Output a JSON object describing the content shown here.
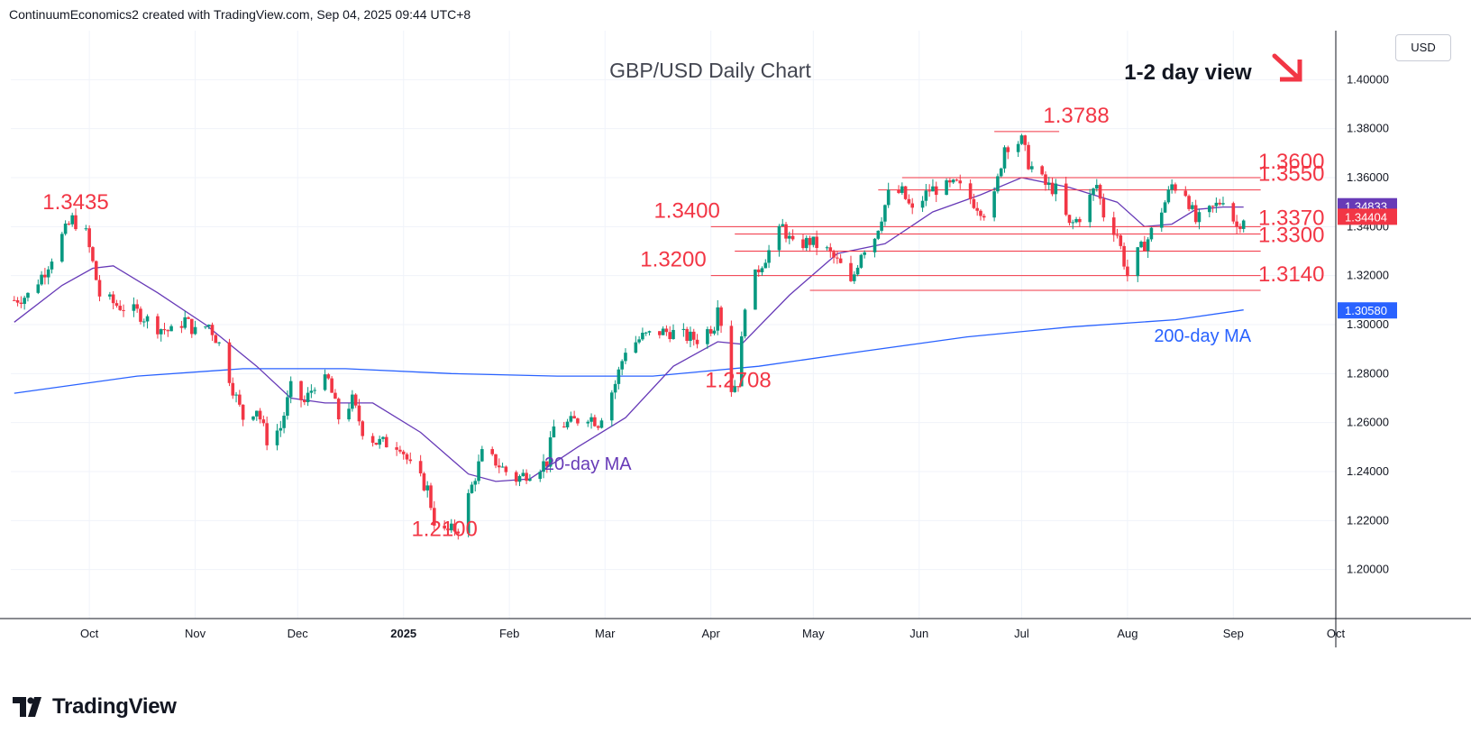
{
  "attribution": "ContinuumEconomics2 created with TradingView.com, Sep 04, 2025 09:44 UTC+8",
  "brand": {
    "name": "TradingView",
    "icon": "tradingview-logo-icon"
  },
  "currency_label": "USD",
  "colors": {
    "up": "#089981",
    "down": "#f23645",
    "ma20": "#673ab7",
    "ma200": "#2962ff",
    "level": "#f23645",
    "grid": "#f0f3fa",
    "arrow": "#f23645"
  },
  "chart_data": {
    "type": "candlestick",
    "title": "GBP/USD Daily Chart",
    "subtitle": "1-2 day view",
    "ylim": [
      1.18,
      1.42
    ],
    "xlim": [
      "2024-09-08",
      "2025-10-01"
    ],
    "y_ticks": [
      "1.20000",
      "1.22000",
      "1.24000",
      "1.26000",
      "1.28000",
      "1.30000",
      "1.32000",
      "1.34000",
      "1.36000",
      "1.38000",
      "1.40000"
    ],
    "x_ticks": [
      {
        "date": "2024-10-01",
        "label": "Oct",
        "bold": false
      },
      {
        "date": "2024-11-01",
        "label": "Nov",
        "bold": false
      },
      {
        "date": "2024-12-01",
        "label": "Dec",
        "bold": false
      },
      {
        "date": "2025-01-01",
        "label": "2025",
        "bold": true
      },
      {
        "date": "2025-02-01",
        "label": "Feb",
        "bold": false
      },
      {
        "date": "2025-03-01",
        "label": "Mar",
        "bold": false
      },
      {
        "date": "2025-04-01",
        "label": "Apr",
        "bold": false
      },
      {
        "date": "2025-05-01",
        "label": "May",
        "bold": false
      },
      {
        "date": "2025-06-01",
        "label": "Jun",
        "bold": false
      },
      {
        "date": "2025-07-01",
        "label": "Jul",
        "bold": false
      },
      {
        "date": "2025-08-01",
        "label": "Aug",
        "bold": false
      },
      {
        "date": "2025-09-01",
        "label": "Sep",
        "bold": false
      },
      {
        "date": "2025-10-01",
        "label": "Oct",
        "bold": false
      }
    ],
    "price_path": [
      [
        "2024-09-09",
        1.31
      ],
      [
        "2024-09-13",
        1.312
      ],
      [
        "2024-09-18",
        1.322
      ],
      [
        "2024-09-23",
        1.336
      ],
      [
        "2024-09-26",
        1.343
      ],
      [
        "2024-09-30",
        1.337
      ],
      [
        "2024-10-02",
        1.325
      ],
      [
        "2024-10-04",
        1.312
      ],
      [
        "2024-10-09",
        1.308
      ],
      [
        "2024-10-15",
        1.305
      ],
      [
        "2024-10-21",
        1.299
      ],
      [
        "2024-10-25",
        1.297
      ],
      [
        "2024-10-29",
        1.302
      ],
      [
        "2024-11-01",
        1.297
      ],
      [
        "2024-11-05",
        1.3
      ],
      [
        "2024-11-08",
        1.292
      ],
      [
        "2024-11-12",
        1.274
      ],
      [
        "2024-11-15",
        1.262
      ],
      [
        "2024-11-19",
        1.266
      ],
      [
        "2024-11-22",
        1.253
      ],
      [
        "2024-11-26",
        1.258
      ],
      [
        "2024-11-29",
        1.274
      ],
      [
        "2024-12-03",
        1.268
      ],
      [
        "2024-12-06",
        1.276
      ],
      [
        "2024-12-10",
        1.277
      ],
      [
        "2024-12-13",
        1.262
      ],
      [
        "2024-12-17",
        1.269
      ],
      [
        "2024-12-20",
        1.257
      ],
      [
        "2024-12-24",
        1.252
      ],
      [
        "2024-12-31",
        1.251
      ],
      [
        "2025-01-03",
        1.242
      ],
      [
        "2025-01-08",
        1.233
      ],
      [
        "2025-01-10",
        1.22
      ],
      [
        "2025-01-13",
        1.215
      ],
      [
        "2025-01-17",
        1.217
      ],
      [
        "2025-01-21",
        1.234
      ],
      [
        "2025-01-24",
        1.247
      ],
      [
        "2025-01-28",
        1.244
      ],
      [
        "2025-01-31",
        1.24
      ],
      [
        "2025-02-03",
        1.237
      ],
      [
        "2025-02-07",
        1.24
      ],
      [
        "2025-02-12",
        1.244
      ],
      [
        "2025-02-14",
        1.258
      ],
      [
        "2025-02-19",
        1.26
      ],
      [
        "2025-02-24",
        1.263
      ],
      [
        "2025-02-27",
        1.26
      ],
      [
        "2025-03-04",
        1.276
      ],
      [
        "2025-03-07",
        1.29
      ],
      [
        "2025-03-12",
        1.295
      ],
      [
        "2025-03-17",
        1.297
      ],
      [
        "2025-03-20",
        1.297
      ],
      [
        "2025-03-25",
        1.295
      ],
      [
        "2025-03-28",
        1.294
      ],
      [
        "2025-04-02",
        1.3
      ],
      [
        "2025-04-03",
        1.31
      ],
      [
        "2025-04-07",
        1.274
      ],
      [
        "2025-04-09",
        1.277
      ],
      [
        "2025-04-11",
        1.309
      ],
      [
        "2025-04-15",
        1.323
      ],
      [
        "2025-04-18",
        1.33
      ],
      [
        "2025-04-22",
        1.34
      ],
      [
        "2025-04-25",
        1.332
      ],
      [
        "2025-04-30",
        1.334
      ],
      [
        "2025-05-05",
        1.33
      ],
      [
        "2025-05-09",
        1.324
      ],
      [
        "2025-05-12",
        1.316
      ],
      [
        "2025-05-15",
        1.33
      ],
      [
        "2025-05-19",
        1.336
      ],
      [
        "2025-05-23",
        1.353
      ],
      [
        "2025-05-27",
        1.354
      ],
      [
        "2025-05-30",
        1.346
      ],
      [
        "2025-06-04",
        1.355
      ],
      [
        "2025-06-09",
        1.356
      ],
      [
        "2025-06-12",
        1.357
      ],
      [
        "2025-06-17",
        1.35
      ],
      [
        "2025-06-20",
        1.346
      ],
      [
        "2025-06-23",
        1.352
      ],
      [
        "2025-06-26",
        1.373
      ],
      [
        "2025-07-01",
        1.375
      ],
      [
        "2025-07-03",
        1.366
      ],
      [
        "2025-07-08",
        1.357
      ],
      [
        "2025-07-11",
        1.355
      ],
      [
        "2025-07-15",
        1.34
      ],
      [
        "2025-07-18",
        1.344
      ],
      [
        "2025-07-23",
        1.357
      ],
      [
        "2025-07-25",
        1.345
      ],
      [
        "2025-07-29",
        1.337
      ],
      [
        "2025-08-01",
        1.32
      ],
      [
        "2025-08-04",
        1.329
      ],
      [
        "2025-08-07",
        1.335
      ],
      [
        "2025-08-12",
        1.35
      ],
      [
        "2025-08-14",
        1.357
      ],
      [
        "2025-08-18",
        1.354
      ],
      [
        "2025-08-21",
        1.342
      ],
      [
        "2025-08-25",
        1.346
      ],
      [
        "2025-08-28",
        1.35
      ],
      [
        "2025-08-29",
        1.352
      ],
      [
        "2025-09-02",
        1.34
      ],
      [
        "2025-09-04",
        1.344
      ]
    ],
    "ma20_path": [
      [
        "2024-09-09",
        1.301
      ],
      [
        "2024-09-23",
        1.316
      ],
      [
        "2024-10-02",
        1.323
      ],
      [
        "2024-10-08",
        1.324
      ],
      [
        "2024-10-21",
        1.313
      ],
      [
        "2024-11-04",
        1.3
      ],
      [
        "2024-11-19",
        1.283
      ],
      [
        "2024-11-29",
        1.27
      ],
      [
        "2024-12-09",
        1.268
      ],
      [
        "2024-12-23",
        1.268
      ],
      [
        "2025-01-06",
        1.256
      ],
      [
        "2025-01-20",
        1.239
      ],
      [
        "2025-01-28",
        1.236
      ],
      [
        "2025-02-07",
        1.237
      ],
      [
        "2025-02-21",
        1.25
      ],
      [
        "2025-03-07",
        1.262
      ],
      [
        "2025-03-21",
        1.283
      ],
      [
        "2025-04-03",
        1.293
      ],
      [
        "2025-04-10",
        1.292
      ],
      [
        "2025-04-24",
        1.312
      ],
      [
        "2025-05-08",
        1.329
      ],
      [
        "2025-05-22",
        1.333
      ],
      [
        "2025-06-05",
        1.346
      ],
      [
        "2025-06-19",
        1.353
      ],
      [
        "2025-07-01",
        1.36
      ],
      [
        "2025-07-15",
        1.356
      ],
      [
        "2025-07-29",
        1.35
      ],
      [
        "2025-08-06",
        1.34
      ],
      [
        "2025-08-14",
        1.341
      ],
      [
        "2025-08-21",
        1.347
      ],
      [
        "2025-08-29",
        1.348
      ],
      [
        "2025-09-04",
        1.348
      ]
    ],
    "ma200_path": [
      [
        "2024-09-09",
        1.272
      ],
      [
        "2024-10-15",
        1.279
      ],
      [
        "2024-11-15",
        1.282
      ],
      [
        "2024-12-15",
        1.282
      ],
      [
        "2025-01-15",
        1.28
      ],
      [
        "2025-02-15",
        1.279
      ],
      [
        "2025-03-15",
        1.279
      ],
      [
        "2025-04-15",
        1.283
      ],
      [
        "2025-05-15",
        1.289
      ],
      [
        "2025-06-15",
        1.295
      ],
      [
        "2025-07-15",
        1.299
      ],
      [
        "2025-08-15",
        1.302
      ],
      [
        "2025-09-04",
        1.306
      ]
    ],
    "levels": [
      {
        "value": 1.3788,
        "label": "1.3788",
        "from": "2025-06-23",
        "to": "2025-07-12"
      },
      {
        "value": 1.36,
        "label": "1.3600",
        "from": "2025-05-27",
        "to": "2025-09-09"
      },
      {
        "value": 1.355,
        "label": "1.3550",
        "from": "2025-05-20",
        "to": "2025-09-09"
      },
      {
        "value": 1.34,
        "label": "1.3400",
        "from": "2025-04-01",
        "to": "2025-09-09"
      },
      {
        "value": 1.337,
        "label": "1.3370",
        "from": "2025-04-08",
        "to": "2025-09-09"
      },
      {
        "value": 1.33,
        "label": "1.3300",
        "from": "2025-04-08",
        "to": "2025-09-09"
      },
      {
        "value": 1.32,
        "label": "1.3200",
        "from": "2025-04-01",
        "to": "2025-09-09"
      },
      {
        "value": 1.314,
        "label": "1.3140",
        "from": "2025-04-30",
        "to": "2025-09-09"
      }
    ],
    "annotations": [
      {
        "text": "1.3435",
        "date": "2024-09-27",
        "value": 1.3435,
        "color": "#f23645"
      },
      {
        "text": "1.3788",
        "date": "2025-07-17",
        "value": 1.3788,
        "color": "#f23645"
      },
      {
        "text": "1.3600",
        "date": "2025-09-18",
        "value": 1.36,
        "color": "#f23645"
      },
      {
        "text": "1.3550",
        "date": "2025-09-18",
        "value": 1.355,
        "color": "#f23645"
      },
      {
        "text": "1.3400",
        "date": "2025-03-25",
        "value": 1.34,
        "color": "#f23645"
      },
      {
        "text": "1.3370",
        "date": "2025-09-18",
        "value": 1.337,
        "color": "#f23645"
      },
      {
        "text": "1.3300",
        "date": "2025-09-18",
        "value": 1.33,
        "color": "#f23645"
      },
      {
        "text": "1.3200",
        "date": "2025-03-21",
        "value": 1.32,
        "color": "#f23645"
      },
      {
        "text": "1.3140",
        "date": "2025-09-18",
        "value": 1.314,
        "color": "#f23645"
      },
      {
        "text": "1.2708",
        "date": "2025-04-09",
        "value": 1.2708,
        "color": "#f23645"
      },
      {
        "text": "1.2100",
        "date": "2025-01-13",
        "value": 1.21,
        "color": "#f23645"
      },
      {
        "text": "20-day MA",
        "date": "2025-02-24",
        "value": 1.2408,
        "color": "#673ab7"
      },
      {
        "text": "200-day MA",
        "date": "2025-08-23",
        "value": 1.293,
        "color": "#2962ff"
      }
    ],
    "price_badges": [
      {
        "text": "1.34833",
        "value": 1.34833,
        "color": "#673ab7"
      },
      {
        "text": "1.34404",
        "value": 1.34404,
        "color": "#f23645"
      },
      {
        "text": "1.30580",
        "value": 1.3058,
        "color": "#2962ff"
      }
    ],
    "grid": true,
    "direction_arrow": "down-right"
  }
}
